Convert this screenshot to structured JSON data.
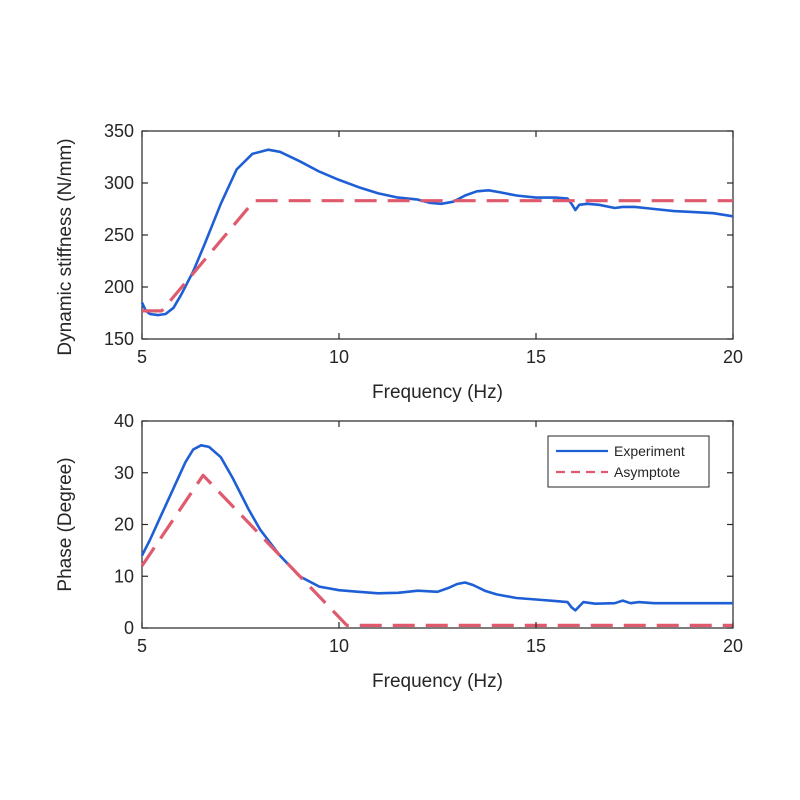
{
  "chart_data": [
    {
      "type": "line",
      "xlabel": "Frequency (Hz)",
      "ylabel": "Dynamic stiffness (N/mm)",
      "xlim": [
        5,
        20
      ],
      "ylim": [
        150,
        350
      ],
      "xticks": [
        5,
        10,
        15,
        20
      ],
      "yticks": [
        150,
        200,
        250,
        300,
        350
      ],
      "grid": false,
      "series": [
        {
          "name": "Experiment",
          "color": "#1f5fd6",
          "style": "solid",
          "x": [
            5.0,
            5.1,
            5.2,
            5.4,
            5.6,
            5.8,
            6.0,
            6.3,
            6.6,
            7.0,
            7.4,
            7.8,
            8.2,
            8.5,
            9.0,
            9.5,
            10.0,
            10.5,
            11.0,
            11.5,
            12.0,
            12.3,
            12.6,
            12.9,
            13.2,
            13.5,
            13.8,
            14.1,
            14.5,
            15.0,
            15.5,
            15.8,
            15.9,
            16.0,
            16.1,
            16.3,
            16.6,
            17.0,
            17.2,
            17.5,
            18.0,
            18.5,
            19.0,
            19.5,
            20.0
          ],
          "y": [
            185,
            177,
            174,
            173,
            174,
            180,
            193,
            215,
            242,
            280,
            313,
            328,
            332,
            330,
            321,
            311,
            303,
            296,
            290,
            286,
            284,
            281,
            280,
            282,
            288,
            292,
            293,
            291,
            288,
            286,
            286,
            285,
            280,
            274,
            279,
            280,
            279,
            276,
            277,
            277,
            275,
            273,
            272,
            271,
            268
          ]
        },
        {
          "name": "Asymptote",
          "color": "#e05a6e",
          "style": "dashed",
          "x": [
            5.0,
            5.5,
            7.85,
            20.0
          ],
          "y": [
            177,
            177,
            283,
            283
          ]
        }
      ]
    },
    {
      "type": "line",
      "xlabel": "Frequency (Hz)",
      "ylabel": "Phase (Degree)",
      "xlim": [
        5,
        20
      ],
      "ylim": [
        0,
        40
      ],
      "xticks": [
        5,
        10,
        15,
        20
      ],
      "yticks": [
        0,
        10,
        20,
        30,
        40
      ],
      "grid": false,
      "legend": {
        "position": "top-right",
        "entries": [
          "Experiment",
          "Asymptote"
        ]
      },
      "series": [
        {
          "name": "Experiment",
          "color": "#1f5fd6",
          "style": "solid",
          "x": [
            5.0,
            5.2,
            5.5,
            5.8,
            6.1,
            6.3,
            6.5,
            6.7,
            7.0,
            7.3,
            7.7,
            8.0,
            8.5,
            9.0,
            9.5,
            10.0,
            10.5,
            11.0,
            11.5,
            12.0,
            12.5,
            12.8,
            13.0,
            13.2,
            13.4,
            13.7,
            14.0,
            14.5,
            15.0,
            15.5,
            15.8,
            15.9,
            16.0,
            16.2,
            16.5,
            17.0,
            17.2,
            17.4,
            17.6,
            18.0,
            18.5,
            19.0,
            19.5,
            20.0
          ],
          "y": [
            14,
            17,
            22,
            27,
            32,
            34.5,
            35.3,
            35,
            33,
            29,
            23,
            19,
            14,
            10,
            8,
            7.3,
            7,
            6.7,
            6.8,
            7.2,
            7,
            7.8,
            8.5,
            8.8,
            8.3,
            7.2,
            6.5,
            5.8,
            5.5,
            5.2,
            5,
            4,
            3.4,
            5,
            4.7,
            4.8,
            5.3,
            4.8,
            5,
            4.8,
            4.8,
            4.8,
            4.8,
            4.8
          ]
        },
        {
          "name": "Asymptote",
          "color": "#e05a6e",
          "style": "dashed",
          "x": [
            5.0,
            6.55,
            10.2,
            20.0
          ],
          "y": [
            12,
            29.5,
            0.5,
            0.5
          ]
        }
      ]
    }
  ]
}
